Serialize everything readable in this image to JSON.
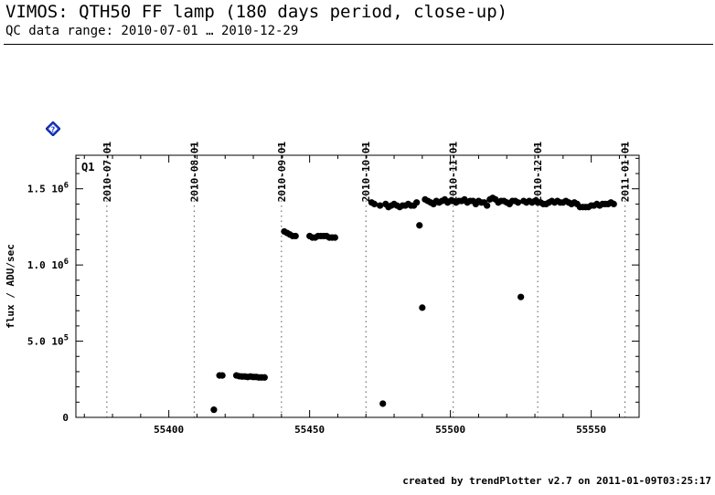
{
  "header": {
    "title": "VIMOS: QTH50 FF lamp (180 days period, close-up)",
    "subtitle": "QC data range: 2010-07-01 … 2010-12-29"
  },
  "footer": "created by trendPlotter v2.7 on 2011-01-09T03:25:17",
  "help_icon": {
    "name": "help-diamond-icon",
    "label": "?",
    "color": "#1f3fcf"
  },
  "chart_data": {
    "type": "scatter",
    "panel_label": "Q1",
    "ylabel": "flux / ADU/sec",
    "xlim": [
      55367,
      55567
    ],
    "ylim": [
      0,
      1720000
    ],
    "x_ticks": [
      {
        "value": 55400,
        "label": "55400"
      },
      {
        "value": 55450,
        "label": "55450"
      },
      {
        "value": 55500,
        "label": "55500"
      },
      {
        "value": 55550,
        "label": "55550"
      }
    ],
    "y_ticks": [
      {
        "value": 0,
        "label": "0",
        "exp": ""
      },
      {
        "value": 500000,
        "label": "5.0 10",
        "exp": "5"
      },
      {
        "value": 1000000,
        "label": "1.0 10",
        "exp": "6"
      },
      {
        "value": 1500000,
        "label": "1.5 10",
        "exp": "6"
      }
    ],
    "date_markers": [
      {
        "mjd": 55378,
        "label": "2010-07-01"
      },
      {
        "mjd": 55409,
        "label": "2010-08-01"
      },
      {
        "mjd": 55440,
        "label": "2010-09-01"
      },
      {
        "mjd": 55470,
        "label": "2010-10-01"
      },
      {
        "mjd": 55501,
        "label": "2010-11-01"
      },
      {
        "mjd": 55531,
        "label": "2010-12-01"
      },
      {
        "mjd": 55562,
        "label": "2011-01-01"
      }
    ],
    "series": [
      {
        "color": "#000000",
        "points": [
          [
            55416,
            50000
          ],
          [
            55418,
            275000
          ],
          [
            55419,
            275000
          ],
          [
            55424,
            275000
          ],
          [
            55425,
            270000
          ],
          [
            55426,
            268000
          ],
          [
            55427,
            268000
          ],
          [
            55428,
            265000
          ],
          [
            55429,
            268000
          ],
          [
            55430,
            265000
          ],
          [
            55431,
            265000
          ],
          [
            55432,
            262000
          ],
          [
            55433,
            262000
          ],
          [
            55434,
            262000
          ],
          [
            55441,
            1220000
          ],
          [
            55442,
            1210000
          ],
          [
            55443,
            1200000
          ],
          [
            55444,
            1190000
          ],
          [
            55445,
            1190000
          ],
          [
            55450,
            1190000
          ],
          [
            55451,
            1180000
          ],
          [
            55452,
            1180000
          ],
          [
            55453,
            1190000
          ],
          [
            55454,
            1190000
          ],
          [
            55455,
            1190000
          ],
          [
            55456,
            1190000
          ],
          [
            55457,
            1180000
          ],
          [
            55458,
            1180000
          ],
          [
            55459,
            1180000
          ],
          [
            55472,
            1410000
          ],
          [
            55473,
            1400000
          ],
          [
            55475,
            1390000
          ],
          [
            55476,
            90000
          ],
          [
            55477,
            1400000
          ],
          [
            55478,
            1380000
          ],
          [
            55479,
            1390000
          ],
          [
            55480,
            1400000
          ],
          [
            55481,
            1390000
          ],
          [
            55482,
            1380000
          ],
          [
            55483,
            1390000
          ],
          [
            55484,
            1390000
          ],
          [
            55485,
            1400000
          ],
          [
            55486,
            1390000
          ],
          [
            55487,
            1390000
          ],
          [
            55488,
            1410000
          ],
          [
            55489,
            1260000
          ],
          [
            55490,
            720000
          ],
          [
            55491,
            1430000
          ],
          [
            55492,
            1420000
          ],
          [
            55493,
            1410000
          ],
          [
            55494,
            1400000
          ],
          [
            55495,
            1420000
          ],
          [
            55496,
            1410000
          ],
          [
            55497,
            1420000
          ],
          [
            55498,
            1430000
          ],
          [
            55499,
            1410000
          ],
          [
            55500,
            1420000
          ],
          [
            55501,
            1420000
          ],
          [
            55502,
            1410000
          ],
          [
            55503,
            1420000
          ],
          [
            55504,
            1420000
          ],
          [
            55505,
            1430000
          ],
          [
            55506,
            1410000
          ],
          [
            55507,
            1420000
          ],
          [
            55508,
            1420000
          ],
          [
            55509,
            1400000
          ],
          [
            55510,
            1420000
          ],
          [
            55511,
            1410000
          ],
          [
            55512,
            1410000
          ],
          [
            55513,
            1390000
          ],
          [
            55514,
            1430000
          ],
          [
            55515,
            1440000
          ],
          [
            55516,
            1430000
          ],
          [
            55517,
            1410000
          ],
          [
            55518,
            1420000
          ],
          [
            55519,
            1420000
          ],
          [
            55520,
            1410000
          ],
          [
            55521,
            1400000
          ],
          [
            55522,
            1420000
          ],
          [
            55523,
            1420000
          ],
          [
            55524,
            1410000
          ],
          [
            55525,
            790000
          ],
          [
            55526,
            1420000
          ],
          [
            55527,
            1410000
          ],
          [
            55528,
            1420000
          ],
          [
            55529,
            1410000
          ],
          [
            55530,
            1420000
          ],
          [
            55531,
            1410000
          ],
          [
            55532,
            1410000
          ],
          [
            55533,
            1400000
          ],
          [
            55534,
            1400000
          ],
          [
            55535,
            1410000
          ],
          [
            55536,
            1420000
          ],
          [
            55537,
            1410000
          ],
          [
            55538,
            1420000
          ],
          [
            55539,
            1410000
          ],
          [
            55540,
            1410000
          ],
          [
            55541,
            1420000
          ],
          [
            55542,
            1410000
          ],
          [
            55543,
            1400000
          ],
          [
            55544,
            1410000
          ],
          [
            55545,
            1400000
          ],
          [
            55546,
            1380000
          ],
          [
            55547,
            1380000
          ],
          [
            55548,
            1380000
          ],
          [
            55549,
            1380000
          ],
          [
            55550,
            1390000
          ],
          [
            55551,
            1390000
          ],
          [
            55552,
            1400000
          ],
          [
            55553,
            1390000
          ],
          [
            55554,
            1400000
          ],
          [
            55555,
            1400000
          ],
          [
            55556,
            1400000
          ],
          [
            55557,
            1410000
          ],
          [
            55558,
            1400000
          ]
        ]
      }
    ]
  }
}
